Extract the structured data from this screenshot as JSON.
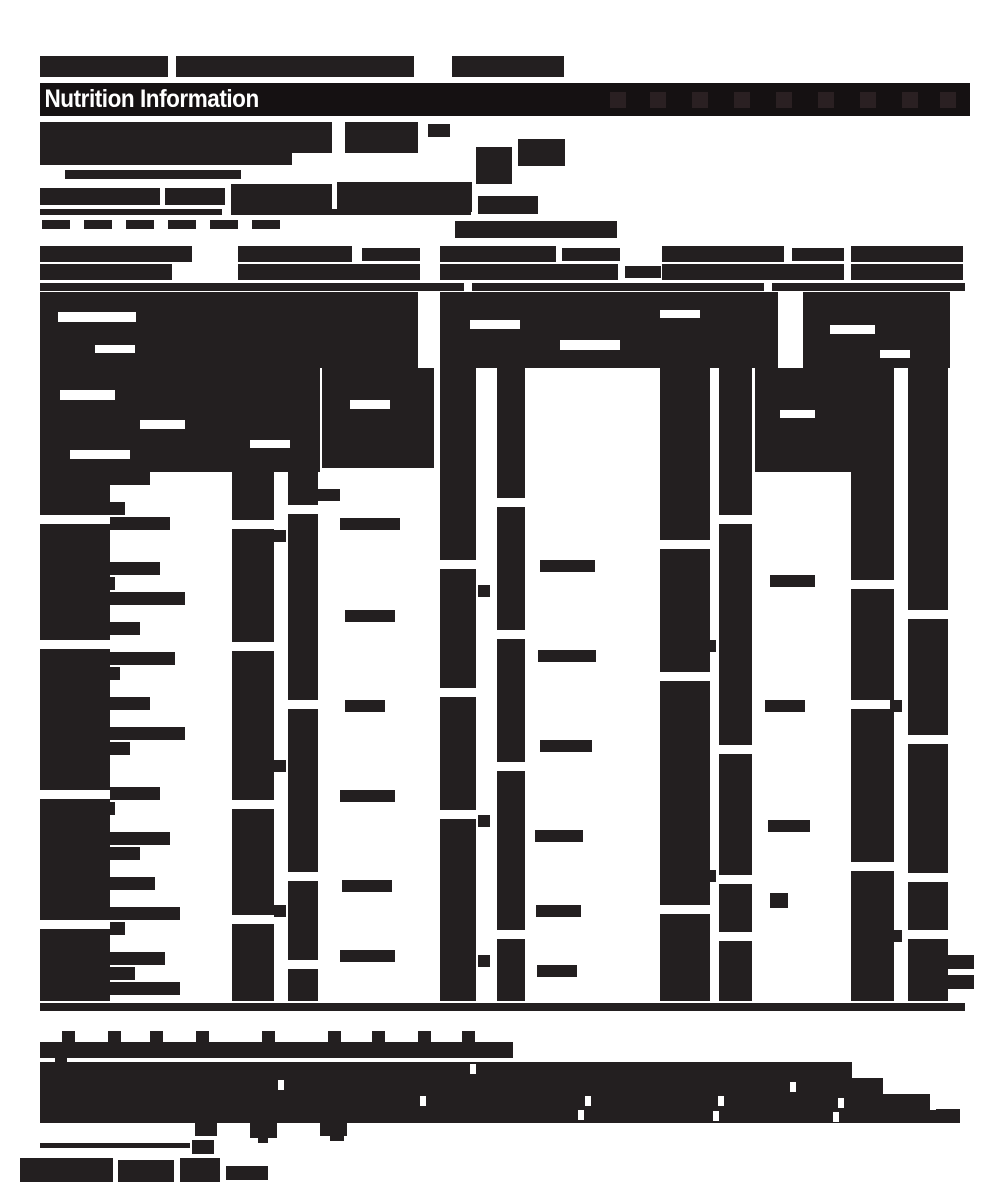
{
  "header": {
    "title": "Nutrition Information"
  },
  "colors": {
    "ink": "#231f20",
    "paper": "#ffffff",
    "header_bg": "#151112",
    "header_text": "#ffffff"
  }
}
